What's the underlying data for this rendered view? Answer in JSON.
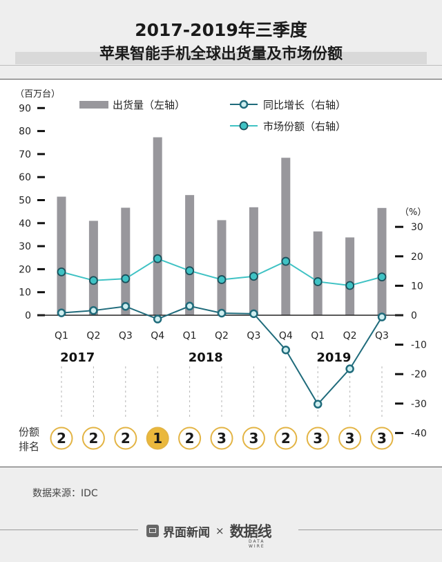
{
  "title_line1": "2017-2019年三季度",
  "title_line2": "苹果智能手机全球出货量及市场份额",
  "source": "数据来源：IDC",
  "footer": {
    "brand": "界面新闻",
    "separator": "×",
    "partner": "数据线",
    "partner_sub": "DATA WIRE"
  },
  "chart_data": {
    "type": "bar+line",
    "categories": [
      "Q1",
      "Q2",
      "Q3",
      "Q4",
      "Q1",
      "Q2",
      "Q3",
      "Q4",
      "Q1",
      "Q2",
      "Q3"
    ],
    "year_labels": [
      {
        "label": "2017",
        "at": 1
      },
      {
        "label": "2018",
        "at": 5
      },
      {
        "label": "2019",
        "at": 9
      }
    ],
    "left_axis": {
      "unit": "（百万台）",
      "min": 0,
      "max": 90,
      "ticks": [
        0,
        10,
        20,
        30,
        40,
        50,
        60,
        70,
        80,
        90
      ]
    },
    "right_axis": {
      "unit": "（%）",
      "min": -40,
      "max": 30,
      "ticks": [
        30,
        20,
        10,
        0,
        -10,
        -20,
        -30,
        -40
      ]
    },
    "series": [
      {
        "name": "出货量（左轴）",
        "kind": "bar",
        "axis": "left",
        "color": "#98979c",
        "values": [
          51.5,
          41,
          46.7,
          77.3,
          52.2,
          41.3,
          46.9,
          68.4,
          36.4,
          33.8,
          46.6
        ]
      },
      {
        "name": "同比增长（右轴）",
        "kind": "line",
        "axis": "right",
        "color": "#1f6b7b",
        "values": [
          0.8,
          1.6,
          3.0,
          -1.3,
          3.1,
          0.7,
          0.5,
          -11.8,
          -30.2,
          -18.2,
          -0.6
        ]
      },
      {
        "name": "市场份额（右轴）",
        "kind": "line",
        "axis": "right",
        "color": "#3fc2c4",
        "values": [
          14.7,
          11.8,
          12.4,
          19.2,
          15.1,
          12.1,
          13.2,
          18.3,
          11.4,
          10.1,
          13.0
        ]
      }
    ],
    "rank_label": [
      "份额",
      "排名"
    ],
    "ranks": [
      "2",
      "2",
      "2",
      "1",
      "2",
      "3",
      "3",
      "2",
      "3",
      "3",
      "3"
    ]
  }
}
